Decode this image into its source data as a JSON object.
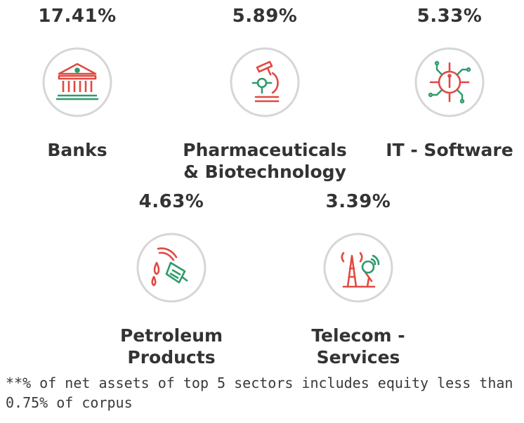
{
  "sectors": [
    {
      "percent": "17.41%",
      "name": "Banks",
      "icon": "bank-icon"
    },
    {
      "percent": "5.89%",
      "name": "Pharmaceuticals\n& Biotechnology",
      "icon": "microscope-icon"
    },
    {
      "percent": "5.33%",
      "name": "IT - Software",
      "icon": "chip-icon"
    },
    {
      "percent": "4.63%",
      "name": "Petroleum\nProducts",
      "icon": "fuel-nozzle-icon"
    },
    {
      "percent": "3.39%",
      "name": "Telecom -\nServices",
      "icon": "telecom-tower-icon"
    }
  ],
  "footnote": "**% of net assets of top 5 sectors includes equity less than 0.75% of corpus",
  "colors": {
    "icon_red": "#e04a43",
    "icon_green": "#2e9a6a",
    "circle": "#d6d6d6",
    "text": "#333333"
  }
}
